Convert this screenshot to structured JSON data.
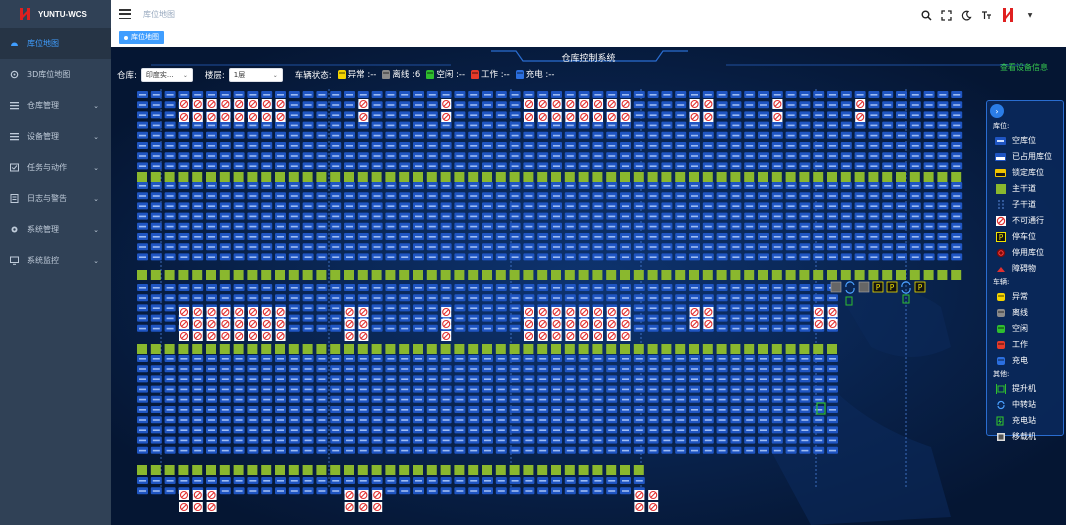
{
  "app": {
    "name": "YUNTU-WCS"
  },
  "sidebar": {
    "items": [
      {
        "label": "库位地图",
        "icon": "dashboard-icon",
        "active": true,
        "expandable": false
      },
      {
        "label": "3D库位地图",
        "icon": "cube-icon",
        "active": false,
        "expandable": false
      },
      {
        "label": "仓库管理",
        "icon": "list-icon",
        "active": false,
        "expandable": true
      },
      {
        "label": "设备管理",
        "icon": "list-icon",
        "active": false,
        "expandable": true
      },
      {
        "label": "任务与动作",
        "icon": "task-icon",
        "active": false,
        "expandable": true
      },
      {
        "label": "日志与警告",
        "icon": "log-icon",
        "active": false,
        "expandable": true
      },
      {
        "label": "系统管理",
        "icon": "gear-icon",
        "active": false,
        "expandable": true
      },
      {
        "label": "系统监控",
        "icon": "monitor-icon",
        "active": false,
        "expandable": true
      }
    ]
  },
  "header": {
    "breadcrumb": "库位地图"
  },
  "tags": {
    "active": "库位地图"
  },
  "main": {
    "title": "仓库控制系统",
    "device_link": "查看设备信息",
    "warehouse_label": "仓库:",
    "warehouse_value": "印度实...",
    "floor_label": "楼层:",
    "floor_value": "1层",
    "vehicle_status_label": "车辆状态:",
    "status": [
      {
        "label": "异常 :--",
        "color": "#f5d400"
      },
      {
        "label": "离线 :6",
        "color": "#8a8a8a"
      },
      {
        "label": "空闲 :--",
        "color": "#2fbe2f"
      },
      {
        "label": "工作 :--",
        "color": "#e53a2a"
      },
      {
        "label": "充电 :--",
        "color": "#2b6fe0"
      }
    ]
  },
  "legend": {
    "section_location": "库位:",
    "section_vehicle": "车辆:",
    "section_other": "其他:",
    "location_items": [
      {
        "label": "空库位",
        "icon": "empty-slot-icon"
      },
      {
        "label": "已占用库位",
        "icon": "occupied-slot-icon"
      },
      {
        "label": "锁定库位",
        "icon": "locked-slot-icon"
      },
      {
        "label": "主干道",
        "icon": "main-road-icon"
      },
      {
        "label": "子干道",
        "icon": "sub-road-icon"
      },
      {
        "label": "不可通行",
        "icon": "no-entry-icon"
      },
      {
        "label": "停车位",
        "icon": "parking-icon"
      },
      {
        "label": "停用库位",
        "icon": "disabled-slot-icon"
      },
      {
        "label": "障碍物",
        "icon": "obstacle-icon"
      }
    ],
    "vehicle_items": [
      {
        "label": "异常",
        "color": "#f5d400"
      },
      {
        "label": "离线",
        "color": "#8a8a8a"
      },
      {
        "label": "空闲",
        "color": "#2fbe2f"
      },
      {
        "label": "工作",
        "color": "#e53a2a"
      },
      {
        "label": "充电",
        "color": "#2b6fe0"
      }
    ],
    "other_items": [
      {
        "label": "提升机",
        "icon": "elevator-icon"
      },
      {
        "label": "中转站",
        "icon": "transfer-station-icon"
      },
      {
        "label": "充电站",
        "icon": "charging-station-icon"
      },
      {
        "label": "移载机",
        "icon": "transfer-machine-icon"
      }
    ]
  },
  "colors": {
    "sidebar_bg": "#304156",
    "accent": "#409eff",
    "map_bg": "#061a3e",
    "slot": "#1f55c2",
    "main_road": "#8ab82e",
    "no_entry": "#e03030"
  }
}
